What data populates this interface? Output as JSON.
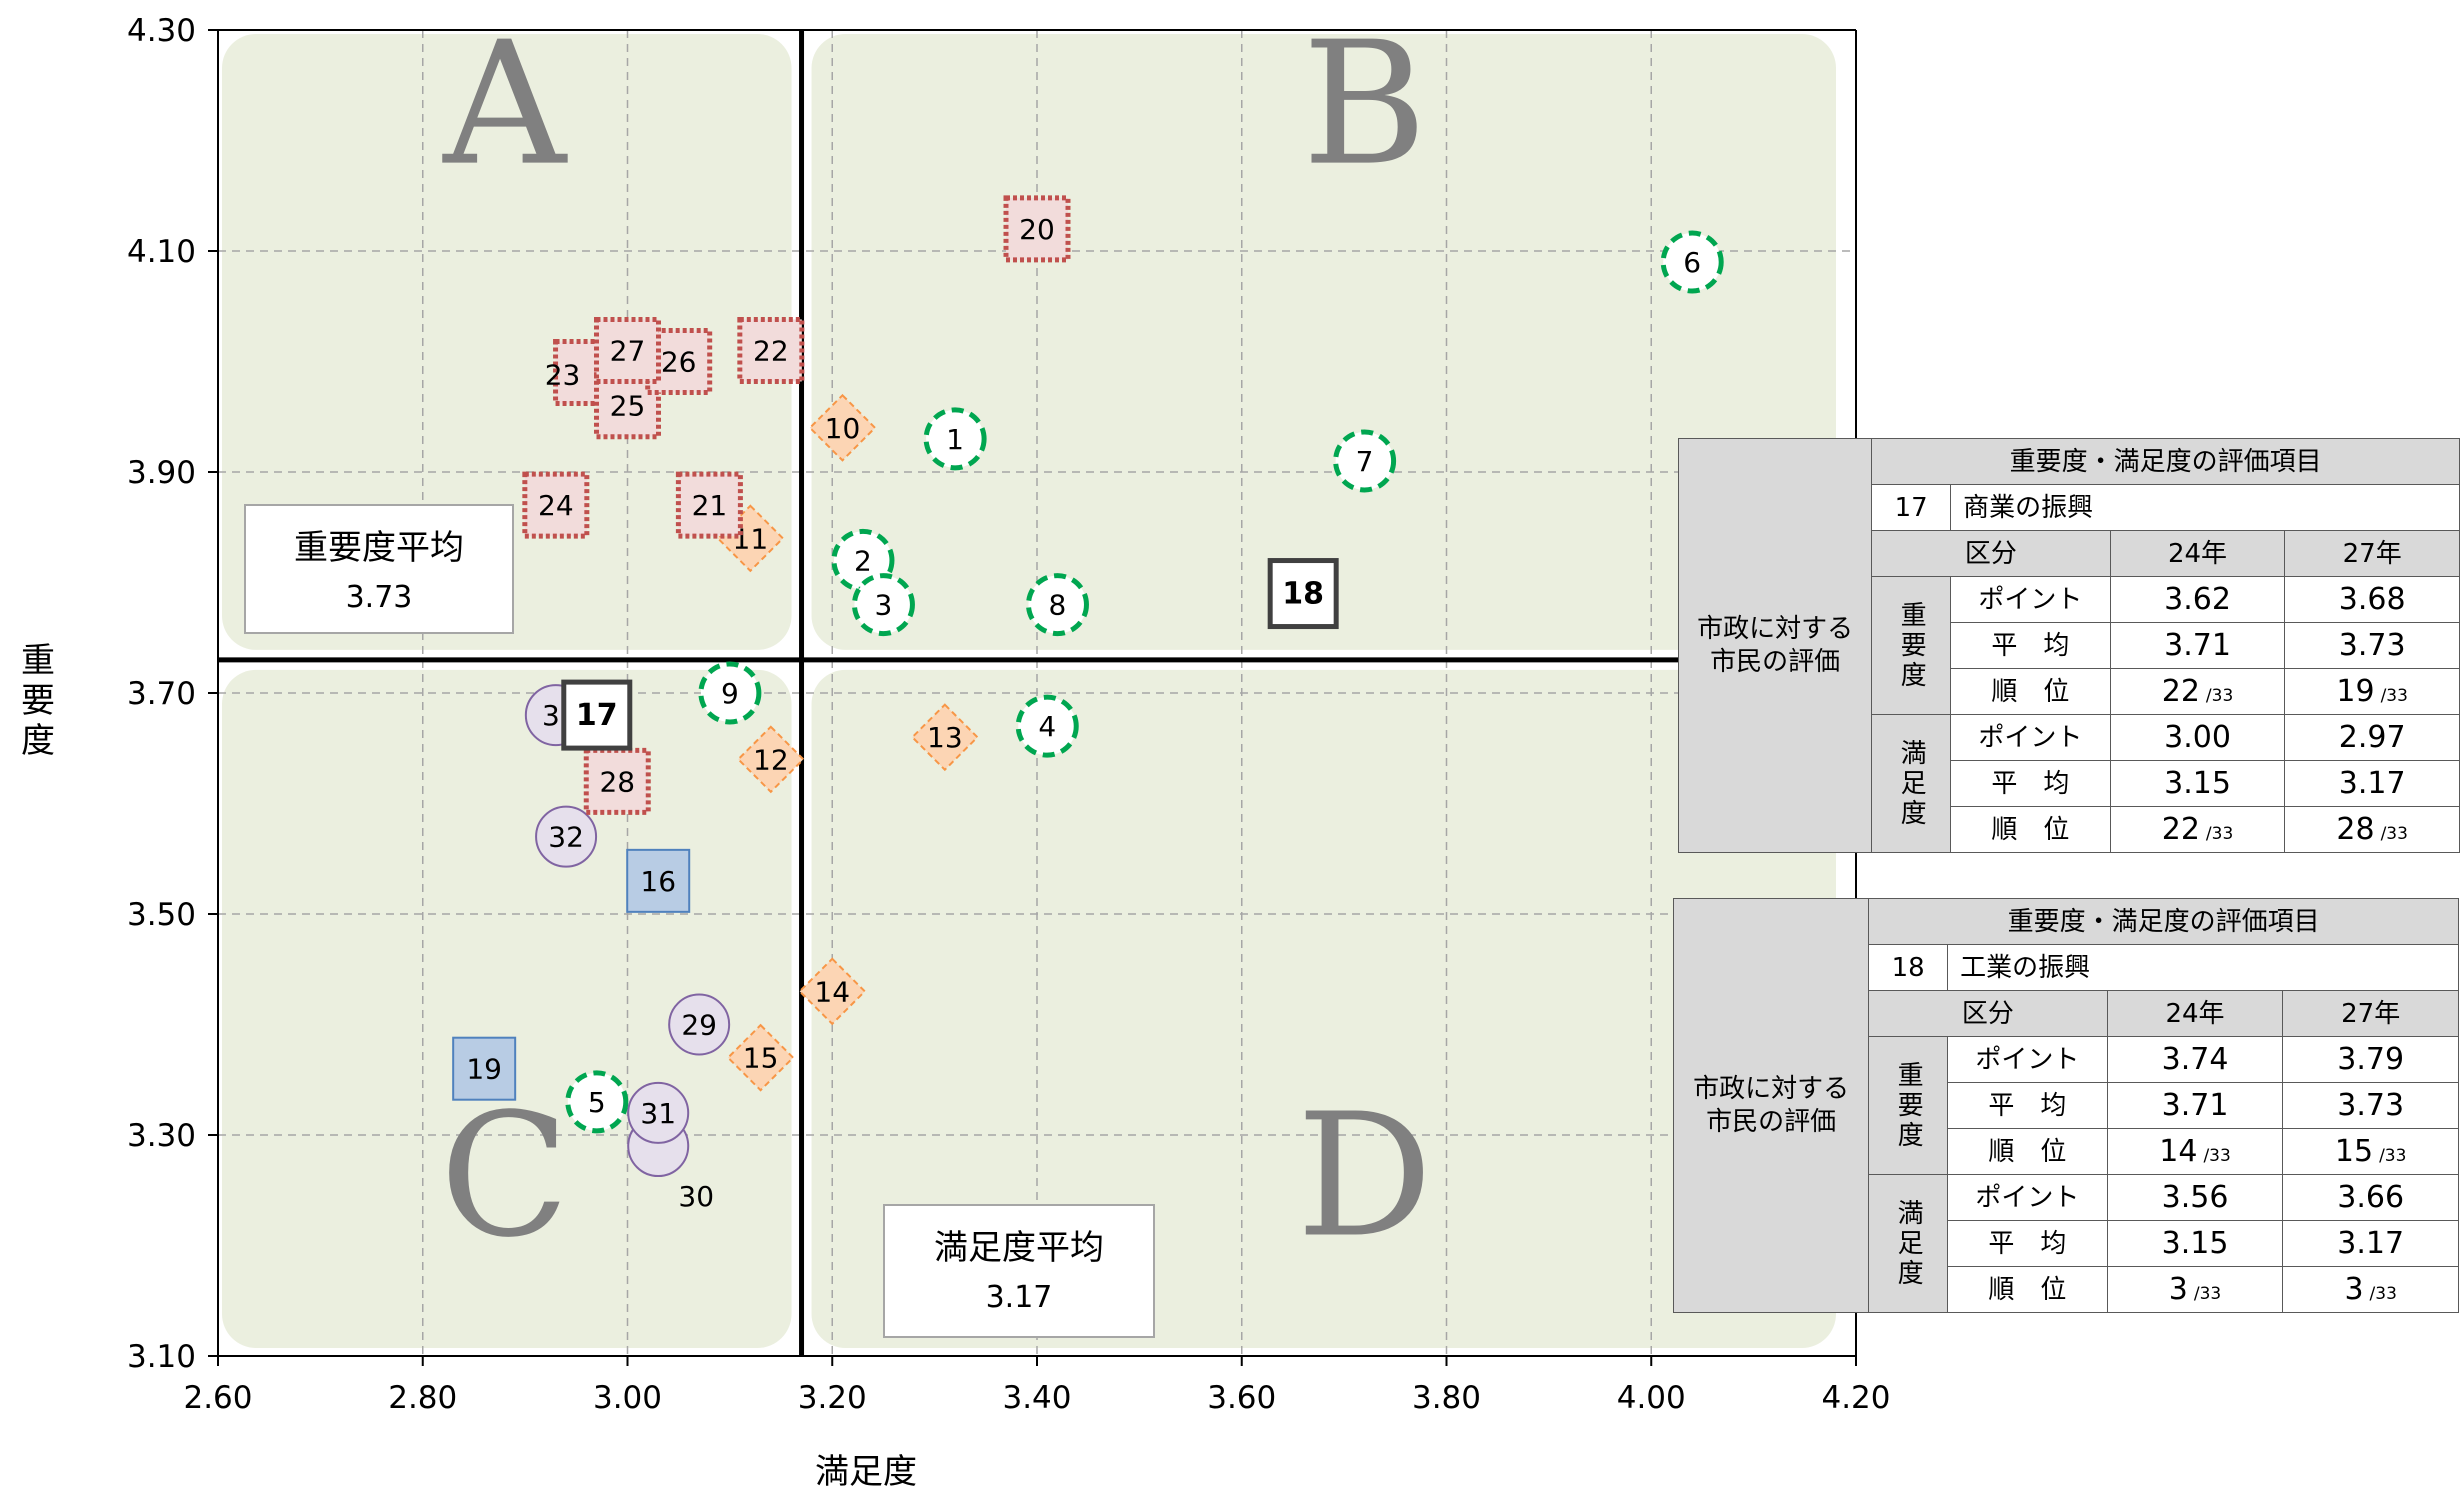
{
  "chart_data": {
    "type": "scatter",
    "xlabel": "満足度",
    "ylabel": "重要度",
    "xlim": [
      2.6,
      4.2
    ],
    "ylim": [
      3.1,
      4.3
    ],
    "xticks": [
      "2.60",
      "2.80",
      "3.00",
      "3.20",
      "3.40",
      "3.60",
      "3.80",
      "4.00",
      "4.20"
    ],
    "yticks": [
      "3.10",
      "3.30",
      "3.50",
      "3.70",
      "3.90",
      "4.10",
      "4.30"
    ],
    "grid": true,
    "quadrant_labels": [
      "A",
      "B",
      "C",
      "D"
    ],
    "averages": {
      "importance": {
        "label": "重要度平均",
        "value": 3.73,
        "value_text": "3.73"
      },
      "satisfaction": {
        "label": "満足度平均",
        "value": 3.17,
        "value_text": "3.17"
      }
    },
    "colors": {
      "quadrant": "#ebefdf",
      "circle_dashed": "#00a650",
      "dotted_square": "#c0504d",
      "dotted_square_fill": "#f2dcdb",
      "diamond": "#f79646",
      "diamond_fill": "#fcd5b4",
      "purple": "#8064a2",
      "purple_fill": "#e6e0ec",
      "blue": "#4f81bd",
      "blue_fill": "#b8cce4",
      "highlight": "#404040"
    },
    "points": [
      {
        "id": "1",
        "x": 3.32,
        "y": 3.93,
        "shape": "circle-dashed"
      },
      {
        "id": "2",
        "x": 3.23,
        "y": 3.82,
        "shape": "circle-dashed"
      },
      {
        "id": "3",
        "x": 3.25,
        "y": 3.78,
        "shape": "circle-dashed"
      },
      {
        "id": "4",
        "x": 3.41,
        "y": 3.67,
        "shape": "circle-dashed"
      },
      {
        "id": "5",
        "x": 2.97,
        "y": 3.33,
        "shape": "circle-dashed"
      },
      {
        "id": "6",
        "x": 4.04,
        "y": 4.09,
        "shape": "circle-dashed"
      },
      {
        "id": "7",
        "x": 3.72,
        "y": 3.91,
        "shape": "circle-dashed"
      },
      {
        "id": "8",
        "x": 3.42,
        "y": 3.78,
        "shape": "circle-dashed"
      },
      {
        "id": "9",
        "x": 3.1,
        "y": 3.7,
        "shape": "circle-dashed"
      },
      {
        "id": "10",
        "x": 3.21,
        "y": 3.94,
        "shape": "diamond"
      },
      {
        "id": "11",
        "x": 3.12,
        "y": 3.84,
        "shape": "diamond"
      },
      {
        "id": "12",
        "x": 3.14,
        "y": 3.64,
        "shape": "diamond"
      },
      {
        "id": "13",
        "x": 3.31,
        "y": 3.66,
        "shape": "diamond"
      },
      {
        "id": "14",
        "x": 3.2,
        "y": 3.43,
        "shape": "diamond"
      },
      {
        "id": "15",
        "x": 3.13,
        "y": 3.37,
        "shape": "diamond"
      },
      {
        "id": "16",
        "x": 3.03,
        "y": 3.53,
        "shape": "blue-square"
      },
      {
        "id": "17",
        "x": 2.97,
        "y": 3.68,
        "shape": "highlight-square"
      },
      {
        "id": "18",
        "x": 3.66,
        "y": 3.79,
        "shape": "highlight-square"
      },
      {
        "id": "19",
        "x": 2.86,
        "y": 3.36,
        "shape": "blue-square"
      },
      {
        "id": "20",
        "x": 3.4,
        "y": 4.12,
        "shape": "dotted-square"
      },
      {
        "id": "21",
        "x": 3.08,
        "y": 3.87,
        "shape": "dotted-square"
      },
      {
        "id": "22",
        "x": 3.14,
        "y": 4.01,
        "shape": "dotted-square"
      },
      {
        "id": "23",
        "x": 2.96,
        "y": 3.99,
        "shape": "dotted-square"
      },
      {
        "id": "24",
        "x": 2.93,
        "y": 3.87,
        "shape": "dotted-square"
      },
      {
        "id": "25",
        "x": 3.0,
        "y": 3.96,
        "shape": "dotted-square"
      },
      {
        "id": "26",
        "x": 3.05,
        "y": 4.0,
        "shape": "dotted-square"
      },
      {
        "id": "27",
        "x": 3.0,
        "y": 4.01,
        "shape": "dotted-square"
      },
      {
        "id": "28",
        "x": 2.99,
        "y": 3.62,
        "shape": "dotted-square"
      },
      {
        "id": "29",
        "x": 3.07,
        "y": 3.4,
        "shape": "purple-circle"
      },
      {
        "id": "30",
        "x": 3.03,
        "y": 3.29,
        "shape": "purple-circle"
      },
      {
        "id": "31",
        "x": 3.03,
        "y": 3.32,
        "shape": "purple-circle"
      },
      {
        "id": "32",
        "x": 2.94,
        "y": 3.57,
        "shape": "purple-circle"
      },
      {
        "id": "33",
        "x": 2.93,
        "y": 3.68,
        "shape": "purple-circle"
      }
    ]
  },
  "tables": [
    {
      "title": "重要度・満足度の評価項目",
      "item_no": "17",
      "item_name": "商業の振興",
      "kubun": "区分",
      "year1": "24年",
      "year2": "27年",
      "eval_label": "市政に対する\n市民の評価",
      "importance": "重要度",
      "satisfaction": "満足度",
      "row_point": "ポイント",
      "row_avg": "平　均",
      "row_rank": "順　位",
      "imp_point": [
        "3.62",
        "3.68"
      ],
      "imp_avg": [
        "3.71",
        "3.73"
      ],
      "imp_rank": [
        "22",
        "19"
      ],
      "sat_point": [
        "3.00",
        "2.97"
      ],
      "sat_avg": [
        "3.15",
        "3.17"
      ],
      "sat_rank": [
        "22",
        "28"
      ],
      "rank_total": "/33"
    },
    {
      "title": "重要度・満足度の評価項目",
      "item_no": "18",
      "item_name": "工業の振興",
      "kubun": "区分",
      "year1": "24年",
      "year2": "27年",
      "eval_label": "市政に対する\n市民の評価",
      "importance": "重要度",
      "satisfaction": "満足度",
      "row_point": "ポイント",
      "row_avg": "平　均",
      "row_rank": "順　位",
      "imp_point": [
        "3.74",
        "3.79"
      ],
      "imp_avg": [
        "3.71",
        "3.73"
      ],
      "imp_rank": [
        "14",
        "15"
      ],
      "sat_point": [
        "3.56",
        "3.66"
      ],
      "sat_avg": [
        "3.15",
        "3.17"
      ],
      "sat_rank": [
        "3",
        "3"
      ],
      "rank_total": "/33"
    }
  ]
}
